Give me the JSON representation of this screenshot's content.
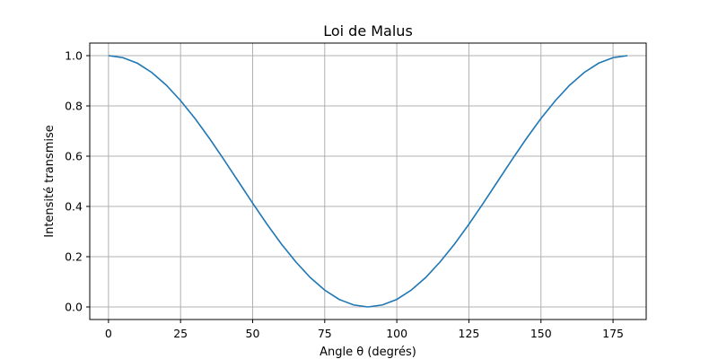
{
  "chart_data": {
    "type": "line",
    "title": "Loi de Malus",
    "xlabel": "Angle θ (degrés)",
    "ylabel": "Intensité transmise",
    "xlim": [
      -6.5,
      186.5
    ],
    "ylim": [
      -0.05,
      1.05
    ],
    "x_ticks": [
      0,
      25,
      50,
      75,
      100,
      125,
      150,
      175
    ],
    "y_ticks": [
      0.0,
      0.2,
      0.4,
      0.6,
      0.8,
      1.0
    ],
    "x_tick_labels": [
      "0",
      "25",
      "50",
      "75",
      "100",
      "125",
      "150",
      "175"
    ],
    "y_tick_labels": [
      "0.0",
      "0.2",
      "0.4",
      "0.6",
      "0.8",
      "1.0"
    ],
    "grid": true,
    "series": [
      {
        "color": "#1f77b4",
        "x": [
          0,
          5,
          10,
          15,
          20,
          25,
          30,
          35,
          40,
          45,
          50,
          55,
          60,
          65,
          70,
          75,
          80,
          85,
          90,
          95,
          100,
          105,
          110,
          115,
          120,
          125,
          130,
          135,
          140,
          145,
          150,
          155,
          160,
          165,
          170,
          175,
          180
        ],
        "y": [
          1.0,
          0.992,
          0.97,
          0.933,
          0.883,
          0.821,
          0.75,
          0.671,
          0.587,
          0.5,
          0.413,
          0.329,
          0.25,
          0.179,
          0.117,
          0.067,
          0.03,
          0.008,
          0.0,
          0.008,
          0.03,
          0.067,
          0.117,
          0.179,
          0.25,
          0.329,
          0.413,
          0.5,
          0.587,
          0.671,
          0.75,
          0.821,
          0.883,
          0.933,
          0.97,
          0.992,
          1.0
        ]
      }
    ]
  }
}
